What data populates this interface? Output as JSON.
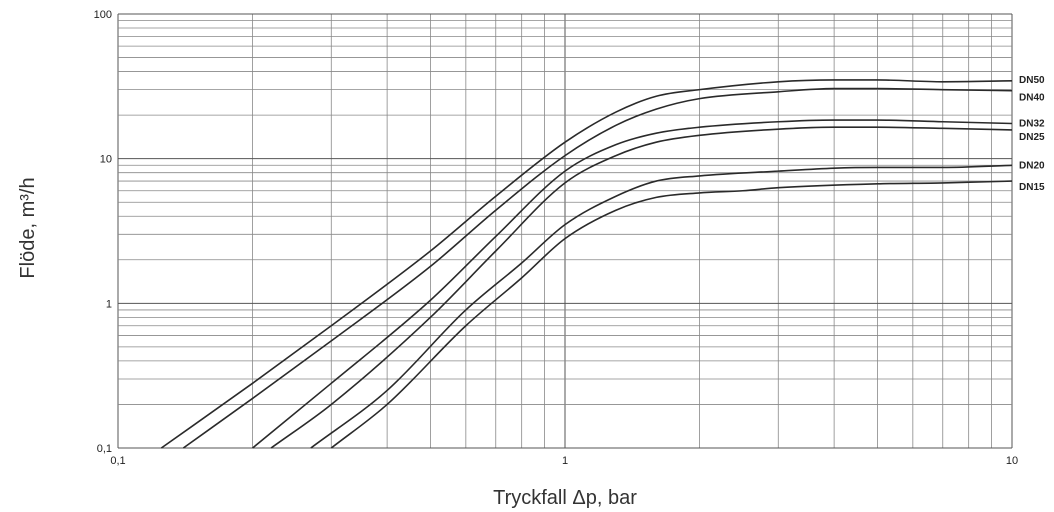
{
  "chart_data": {
    "type": "line",
    "title": "",
    "xlabel": "Tryckfall Δp, bar",
    "ylabel": "Flöde, m³/h",
    "xscale": "log",
    "yscale": "log",
    "xlim": [
      0.1,
      10
    ],
    "ylim": [
      0.1,
      100
    ],
    "grid": true,
    "x_ticks": [
      {
        "value": 0.1,
        "label": "0,1"
      },
      {
        "value": 1,
        "label": "1"
      },
      {
        "value": 10,
        "label": "10"
      }
    ],
    "y_ticks": [
      {
        "value": 0.1,
        "label": "0,1"
      },
      {
        "value": 1,
        "label": "1"
      },
      {
        "value": 10,
        "label": "10"
      },
      {
        "value": 100,
        "label": "100"
      }
    ],
    "series": [
      {
        "name": "DN50",
        "label": "DN50",
        "points": [
          [
            0.125,
            0.1
          ],
          [
            0.2,
            0.28
          ],
          [
            0.3,
            0.7
          ],
          [
            0.5,
            2.3
          ],
          [
            0.7,
            5.5
          ],
          [
            1,
            13
          ],
          [
            1.3,
            21
          ],
          [
            1.6,
            27
          ],
          [
            2,
            30
          ],
          [
            3,
            34
          ],
          [
            4,
            35
          ],
          [
            5,
            35
          ],
          [
            7,
            34
          ],
          [
            10,
            34.5
          ]
        ]
      },
      {
        "name": "DN40",
        "label": "DN40",
        "points": [
          [
            0.14,
            0.1
          ],
          [
            0.2,
            0.22
          ],
          [
            0.3,
            0.55
          ],
          [
            0.5,
            1.8
          ],
          [
            0.7,
            4.4
          ],
          [
            1,
            10.5
          ],
          [
            1.3,
            17
          ],
          [
            1.6,
            22
          ],
          [
            2,
            26
          ],
          [
            3,
            29
          ],
          [
            4,
            30.5
          ],
          [
            5,
            30.5
          ],
          [
            7,
            30
          ],
          [
            10,
            29.5
          ]
        ]
      },
      {
        "name": "DN32",
        "label": "DN32",
        "points": [
          [
            0.2,
            0.1
          ],
          [
            0.3,
            0.28
          ],
          [
            0.5,
            1.05
          ],
          [
            0.7,
            2.9
          ],
          [
            1,
            8.2
          ],
          [
            1.3,
            12.5
          ],
          [
            1.6,
            15
          ],
          [
            2,
            16.5
          ],
          [
            3,
            18
          ],
          [
            4,
            18.5
          ],
          [
            5,
            18.5
          ],
          [
            7,
            18
          ],
          [
            10,
            17.5
          ]
        ]
      },
      {
        "name": "DN25",
        "label": "DN25",
        "points": [
          [
            0.22,
            0.1
          ],
          [
            0.3,
            0.2
          ],
          [
            0.5,
            0.8
          ],
          [
            0.7,
            2.3
          ],
          [
            1,
            6.8
          ],
          [
            1.3,
            10.5
          ],
          [
            1.6,
            13
          ],
          [
            2,
            14.5
          ],
          [
            3,
            16
          ],
          [
            4,
            16.5
          ],
          [
            5,
            16.5
          ],
          [
            7,
            16.2
          ],
          [
            10,
            15.8
          ]
        ]
      },
      {
        "name": "DN20",
        "label": "DN20",
        "points": [
          [
            0.27,
            0.1
          ],
          [
            0.4,
            0.25
          ],
          [
            0.6,
            0.9
          ],
          [
            0.8,
            1.9
          ],
          [
            1,
            3.5
          ],
          [
            1.3,
            5.5
          ],
          [
            1.6,
            7
          ],
          [
            2,
            7.6
          ],
          [
            3,
            8.2
          ],
          [
            4,
            8.6
          ],
          [
            5,
            8.7
          ],
          [
            7,
            8.7
          ],
          [
            10,
            9
          ]
        ]
      },
      {
        "name": "DN15",
        "label": "DN15",
        "points": [
          [
            0.3,
            0.1
          ],
          [
            0.4,
            0.2
          ],
          [
            0.6,
            0.7
          ],
          [
            0.8,
            1.5
          ],
          [
            1,
            2.8
          ],
          [
            1.3,
            4.4
          ],
          [
            1.6,
            5.4
          ],
          [
            2,
            5.8
          ],
          [
            2.5,
            6
          ],
          [
            3,
            6.3
          ],
          [
            5,
            6.7
          ],
          [
            7,
            6.8
          ],
          [
            10,
            7
          ]
        ]
      }
    ]
  }
}
